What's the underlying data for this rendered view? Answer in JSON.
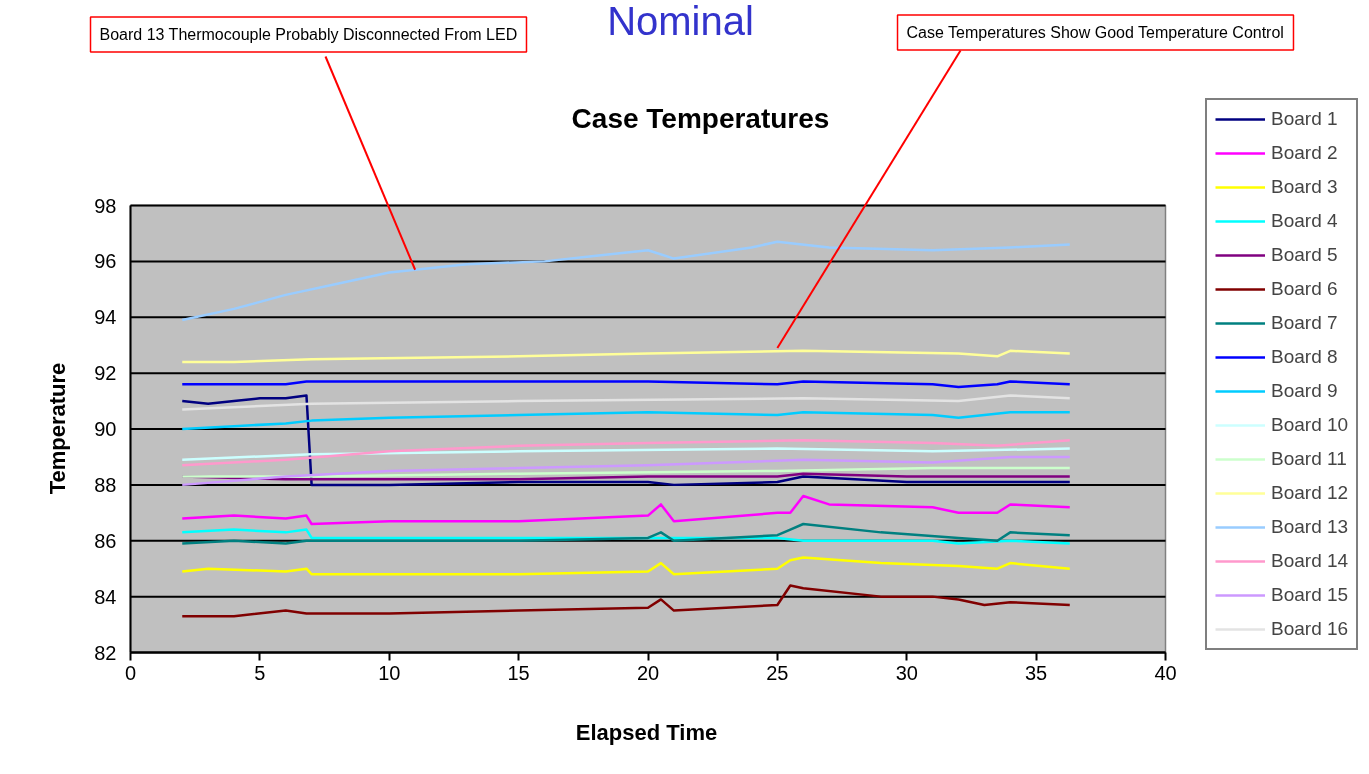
{
  "chart_data": {
    "type": "line",
    "title": "Case Temperatures",
    "xlabel": "Elapsed Time",
    "ylabel": "Temperature",
    "xlim": [
      0,
      40
    ],
    "ylim": [
      82,
      98
    ],
    "xticks": [
      0,
      5,
      10,
      15,
      20,
      25,
      30,
      35,
      40
    ],
    "yticks": [
      82,
      84,
      86,
      88,
      90,
      92,
      94,
      96,
      98
    ],
    "grid": "y",
    "legend": "right",
    "line_style": "solid",
    "annotations": [
      "Nominal",
      {
        "text": "Board 13 Thermocouple Probably Disconnected From LED",
        "x": 11,
        "y": 95.7
      },
      {
        "text": "Case Temperatures Show Good Temperature Control",
        "x": 25,
        "y": 92.9
      }
    ],
    "series": [
      {
        "name": "Board 1",
        "color": "#000080",
        "x": [
          2,
          3,
          4,
          5,
          6,
          6.8,
          7,
          10,
          15,
          20,
          21,
          25,
          26,
          30,
          34,
          36.3
        ],
        "values": [
          91.0,
          90.9,
          91.0,
          91.1,
          91.1,
          91.2,
          88.0,
          88.0,
          88.1,
          88.1,
          88.0,
          88.1,
          88.3,
          88.1,
          88.1,
          88.1
        ]
      },
      {
        "name": "Board 2",
        "color": "#ff00ff",
        "x": [
          2,
          4,
          6,
          6.8,
          7,
          10,
          15,
          20,
          20.5,
          21,
          25,
          25.5,
          26,
          27,
          31,
          32,
          33.5,
          34,
          36.3
        ],
        "values": [
          86.8,
          86.9,
          86.8,
          86.9,
          86.6,
          86.7,
          86.7,
          86.9,
          87.3,
          86.7,
          87.0,
          87.0,
          87.6,
          87.3,
          87.2,
          87.0,
          87.0,
          87.3,
          87.2
        ]
      },
      {
        "name": "Board 3",
        "color": "#ffff00",
        "x": [
          2,
          3,
          6,
          6.8,
          7,
          10,
          15,
          20,
          20.5,
          21,
          25,
          25.5,
          26,
          29,
          32,
          33.5,
          34,
          36.3
        ],
        "values": [
          84.9,
          85.0,
          84.9,
          85.0,
          84.8,
          84.8,
          84.8,
          84.9,
          85.2,
          84.8,
          85.0,
          85.3,
          85.4,
          85.2,
          85.1,
          85.0,
          85.2,
          85.0
        ]
      },
      {
        "name": "Board 4",
        "color": "#00ffff",
        "x": [
          2,
          4,
          6,
          6.8,
          7,
          15,
          20,
          25,
          26,
          29,
          31,
          32,
          34,
          36.3
        ],
        "values": [
          86.3,
          86.4,
          86.3,
          86.4,
          86.1,
          86.1,
          86.1,
          86.1,
          86.0,
          86.0,
          86.0,
          85.9,
          86.0,
          85.9
        ]
      },
      {
        "name": "Board 5",
        "color": "#800080",
        "x": [
          2,
          6,
          7,
          15,
          20,
          25,
          26,
          30,
          33,
          36.3
        ],
        "values": [
          88.3,
          88.2,
          88.2,
          88.2,
          88.3,
          88.3,
          88.4,
          88.3,
          88.3,
          88.3
        ]
      },
      {
        "name": "Board 6",
        "color": "#800000",
        "x": [
          2,
          4,
          6,
          6.8,
          10,
          15,
          20,
          20.5,
          21,
          25,
          25.5,
          26,
          29,
          31,
          32,
          33,
          34,
          36.3
        ],
        "values": [
          83.3,
          83.3,
          83.5,
          83.4,
          83.4,
          83.5,
          83.6,
          83.9,
          83.5,
          83.7,
          84.4,
          84.3,
          84.0,
          84.0,
          83.9,
          83.7,
          83.8,
          83.7
        ]
      },
      {
        "name": "Board 7",
        "color": "#008080",
        "x": [
          2,
          4,
          6,
          6.8,
          7,
          15,
          20,
          20.5,
          21,
          25,
          25.5,
          26,
          29,
          32,
          33.5,
          34,
          36.3
        ],
        "values": [
          85.9,
          86.0,
          85.9,
          86.0,
          86.0,
          86.0,
          86.1,
          86.3,
          86.0,
          86.2,
          86.4,
          86.6,
          86.3,
          86.1,
          86.0,
          86.3,
          86.2
        ]
      },
      {
        "name": "Board 8",
        "color": "#0000ff",
        "x": [
          2,
          4,
          6,
          6.8,
          10,
          15,
          20,
          25,
          26,
          31,
          32,
          33.5,
          34,
          36.3
        ],
        "values": [
          91.6,
          91.6,
          91.6,
          91.7,
          91.7,
          91.7,
          91.7,
          91.6,
          91.7,
          91.6,
          91.5,
          91.6,
          91.7,
          91.6
        ]
      },
      {
        "name": "Board 9",
        "color": "#00ccff",
        "x": [
          2,
          4,
          6,
          7,
          10,
          15,
          20,
          25,
          26,
          31,
          32,
          34,
          36.3
        ],
        "values": [
          90.0,
          90.1,
          90.2,
          90.3,
          90.4,
          90.5,
          90.6,
          90.5,
          90.6,
          90.5,
          90.4,
          90.6,
          90.6
        ]
      },
      {
        "name": "Board 10",
        "color": "#ccffff",
        "x": [
          2,
          7,
          15,
          25,
          31,
          36.3
        ],
        "values": [
          88.9,
          89.1,
          89.2,
          89.3,
          89.2,
          89.3
        ]
      },
      {
        "name": "Board 11",
        "color": "#ccffcc",
        "x": [
          2,
          7,
          15,
          25,
          31,
          36.3
        ],
        "values": [
          88.3,
          88.3,
          88.4,
          88.5,
          88.6,
          88.6
        ]
      },
      {
        "name": "Board 12",
        "color": "#ffff99",
        "x": [
          2,
          4,
          7,
          15,
          20,
          26,
          32,
          33.5,
          34,
          36.3
        ],
        "values": [
          92.4,
          92.4,
          92.5,
          92.6,
          92.7,
          92.8,
          92.7,
          92.6,
          92.8,
          92.7
        ]
      },
      {
        "name": "Board 13",
        "color": "#99ccff",
        "x": [
          2,
          4,
          6,
          8,
          10,
          13,
          16,
          18,
          20,
          21,
          24,
          25,
          27,
          31,
          34,
          36.3
        ],
        "values": [
          93.9,
          94.3,
          94.8,
          95.2,
          95.6,
          95.9,
          96.0,
          96.2,
          96.4,
          96.1,
          96.5,
          96.7,
          96.5,
          96.4,
          96.5,
          96.6
        ]
      },
      {
        "name": "Board 14",
        "color": "#ff99cc",
        "x": [
          2,
          6,
          10,
          15,
          20,
          26,
          31,
          33.5,
          36.3
        ],
        "values": [
          88.7,
          88.9,
          89.2,
          89.4,
          89.5,
          89.6,
          89.5,
          89.4,
          89.6
        ]
      },
      {
        "name": "Board 15",
        "color": "#cc99ff",
        "x": [
          2,
          6,
          10,
          20,
          26,
          31,
          34,
          36.3
        ],
        "values": [
          88.0,
          88.3,
          88.5,
          88.7,
          88.9,
          88.8,
          89.0,
          89.0
        ]
      },
      {
        "name": "Board 16",
        "color": "#e3e3e3",
        "x": [
          2,
          7,
          15,
          26,
          32,
          34,
          36.3
        ],
        "values": [
          90.7,
          90.9,
          91.0,
          91.1,
          91.0,
          91.2,
          91.1
        ]
      }
    ]
  }
}
